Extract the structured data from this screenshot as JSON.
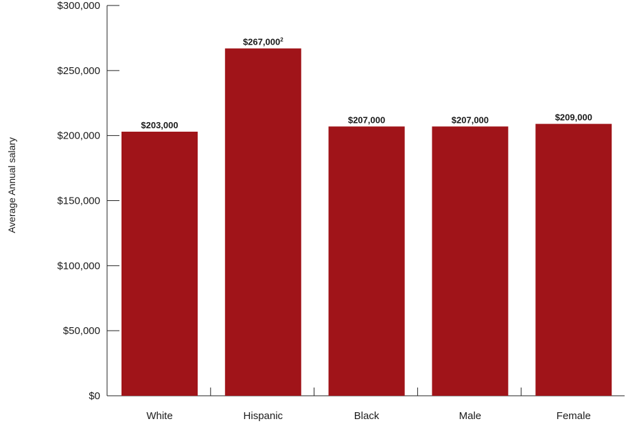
{
  "chart_data": {
    "type": "bar",
    "title": "",
    "xlabel": "",
    "ylabel": "Average Annual salary",
    "ylim": [
      0,
      300000
    ],
    "yticks": [
      0,
      50000,
      100000,
      150000,
      200000,
      250000,
      300000
    ],
    "ytick_labels": [
      "$0",
      "$50,000",
      "$100,000",
      "$150,000",
      "$200,000",
      "$250,000",
      "$300,000"
    ],
    "categories": [
      "White",
      "Hispanic",
      "Black",
      "Male",
      "Female"
    ],
    "values": [
      203000,
      267000,
      207000,
      207000,
      209000
    ],
    "data_labels": [
      "$203,000",
      "$267,000",
      "$207,000",
      "$207,000",
      "$209,000"
    ],
    "data_label_superscripts": [
      "",
      "2",
      "",
      "",
      ""
    ],
    "bar_color": "#a01419",
    "grid": false
  }
}
